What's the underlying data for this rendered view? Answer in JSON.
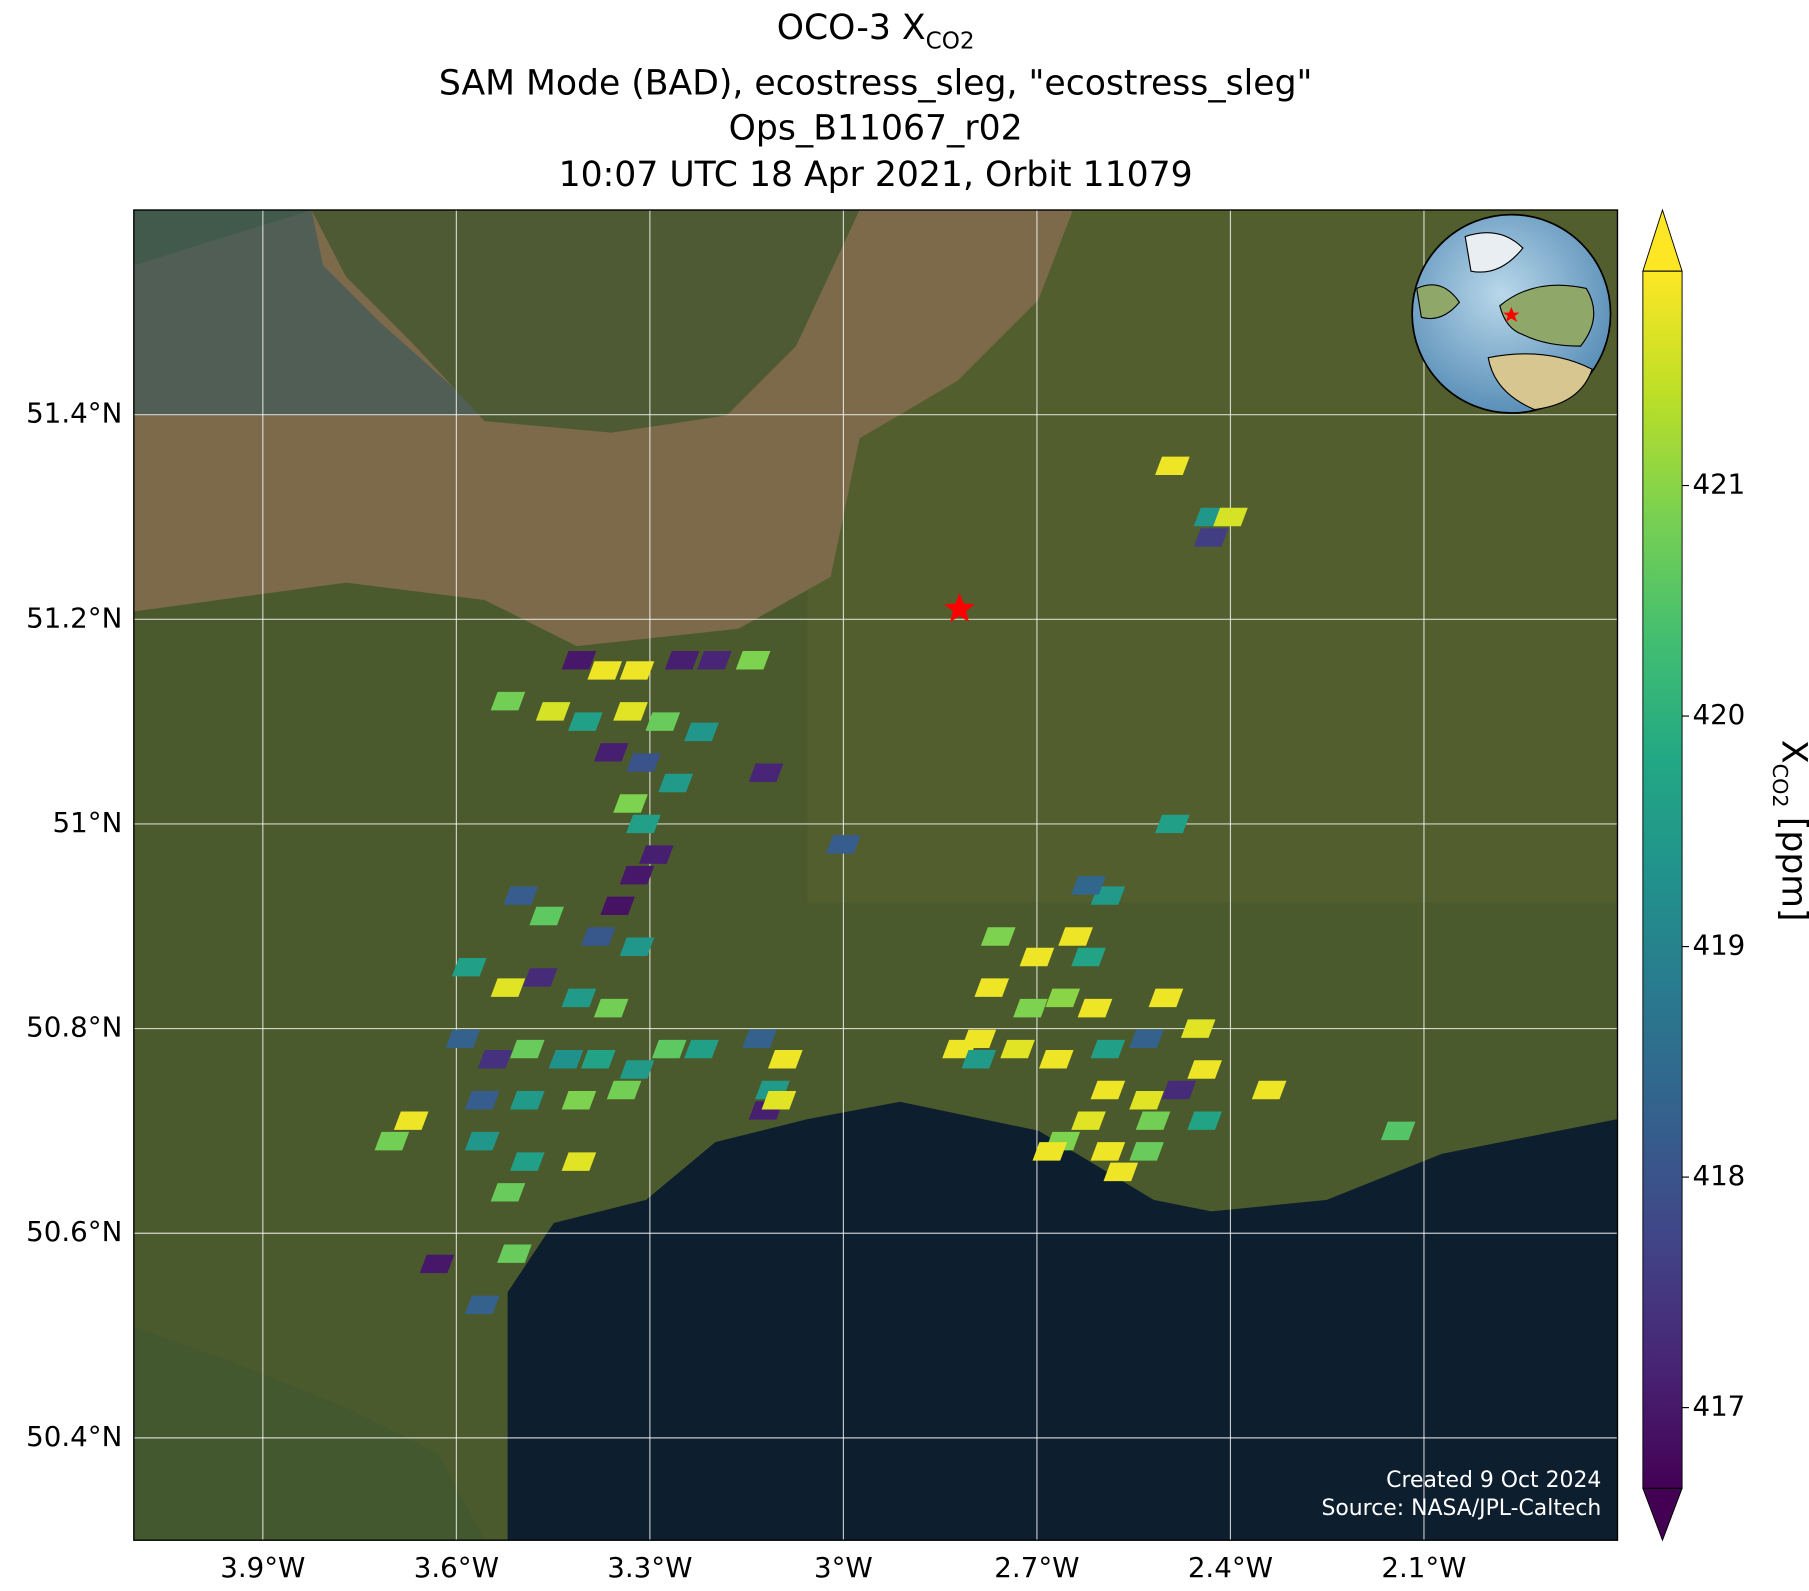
{
  "chart_data": {
    "type": "map",
    "title": {
      "main": "OCO-3 X",
      "subscript": "CO2"
    },
    "subtitle": [
      "SAM Mode (BAD), ecostress_sleg, \"ecostress_sleg\"",
      "Ops_B11067_r02",
      "10:07 UTC 18 Apr 2021, Orbit 11079"
    ],
    "xlim": [
      -4.1,
      -1.8
    ],
    "ylim": [
      50.3,
      51.6
    ],
    "xticks": [
      {
        "value": -3.9,
        "label": "3.9°W"
      },
      {
        "value": -3.6,
        "label": "3.6°W"
      },
      {
        "value": -3.3,
        "label": "3.3°W"
      },
      {
        "value": -3.0,
        "label": "3°W"
      },
      {
        "value": -2.7,
        "label": "2.7°W"
      },
      {
        "value": -2.4,
        "label": "2.4°W"
      },
      {
        "value": -2.1,
        "label": "2.1°W"
      }
    ],
    "yticks": [
      {
        "value": 51.4,
        "label": "51.4°N"
      },
      {
        "value": 51.2,
        "label": "51.2°N"
      },
      {
        "value": 51.0,
        "label": "51°N"
      },
      {
        "value": 50.8,
        "label": "50.8°N"
      },
      {
        "value": 50.6,
        "label": "50.6°N"
      },
      {
        "value": 50.4,
        "label": "50.4°N"
      }
    ],
    "grid": true,
    "colormap": "viridis",
    "clim": [
      416.65,
      421.93
    ],
    "cticks": [
      417,
      418,
      419,
      420,
      421
    ],
    "colorbar_label": {
      "main": "X",
      "subscript": "CO2",
      "unit": "[ppm]"
    },
    "target": {
      "lon": -2.82,
      "lat": 51.21,
      "color": "#ff0000"
    },
    "cells": {
      "lon": [
        -3.52,
        -3.41,
        -3.37,
        -3.32,
        -3.25,
        -3.2,
        -3.14,
        -3.45,
        -3.4,
        -3.33,
        -3.28,
        -3.22,
        -3.36,
        -3.31,
        -3.26,
        -3.33,
        -3.31,
        -3.32,
        -3.35,
        -3.29,
        -3.5,
        -3.46,
        -3.38,
        -3.32,
        -3.58,
        -3.52,
        -3.47,
        -3.41,
        -3.36,
        -3.59,
        -3.54,
        -3.49,
        -3.43,
        -3.38,
        -3.32,
        -3.27,
        -3.22,
        -3.56,
        -3.49,
        -3.41,
        -3.34,
        -3.67,
        -3.7,
        -3.56,
        -3.49,
        -3.41,
        -3.52,
        -3.63,
        -3.56,
        -3.51,
        -3.13,
        -3.09,
        -3.11,
        -3.12,
        -3.1,
        -3.12,
        -3.0,
        -2.49,
        -2.49,
        -2.43,
        -2.4,
        -2.43,
        -2.76,
        -2.7,
        -2.64,
        -2.77,
        -2.71,
        -2.66,
        -2.61,
        -2.79,
        -2.73,
        -2.67,
        -2.59,
        -2.53,
        -2.5,
        -2.45,
        -2.44,
        -2.59,
        -2.53,
        -2.48,
        -2.52,
        -2.44,
        -2.62,
        -2.59,
        -2.62,
        -2.82,
        -2.79,
        -2.66,
        -2.62,
        -2.68,
        -2.59,
        -2.57,
        -2.53,
        -2.34,
        -2.14
      ],
      "lat": [
        51.12,
        51.16,
        51.15,
        51.15,
        51.16,
        51.16,
        51.16,
        51.11,
        51.1,
        51.11,
        51.1,
        51.09,
        51.07,
        51.06,
        51.04,
        51.02,
        51.0,
        50.95,
        50.92,
        50.97,
        50.93,
        50.91,
        50.89,
        50.88,
        50.86,
        50.84,
        50.85,
        50.83,
        50.82,
        50.79,
        50.77,
        50.78,
        50.77,
        50.77,
        50.76,
        50.78,
        50.78,
        50.73,
        50.73,
        50.73,
        50.74,
        50.71,
        50.69,
        50.69,
        50.67,
        50.67,
        50.64,
        50.57,
        50.53,
        50.58,
        50.79,
        50.77,
        50.74,
        50.72,
        50.73,
        51.05,
        50.98,
        51.0,
        51.35,
        51.3,
        51.3,
        51.28,
        50.89,
        50.87,
        50.89,
        50.84,
        50.82,
        50.83,
        50.82,
        50.79,
        50.78,
        50.77,
        50.78,
        50.79,
        50.83,
        50.8,
        50.76,
        50.74,
        50.73,
        50.74,
        50.71,
        50.71,
        50.87,
        50.93,
        50.94,
        50.78,
        50.77,
        50.69,
        50.71,
        50.68,
        50.68,
        50.66,
        50.68,
        50.74,
        50.7
      ],
      "values": [
        420.8,
        417.0,
        421.8,
        421.8,
        417.1,
        417.2,
        420.9,
        421.6,
        419.6,
        421.7,
        420.7,
        419.4,
        417.1,
        418.0,
        419.5,
        420.9,
        419.6,
        417.0,
        416.9,
        417.1,
        418.2,
        420.6,
        418.1,
        419.4,
        419.6,
        421.7,
        417.3,
        419.5,
        420.8,
        418.3,
        417.4,
        420.7,
        419.3,
        419.7,
        419.5,
        420.6,
        419.6,
        418.2,
        419.5,
        420.9,
        420.8,
        421.8,
        420.8,
        419.4,
        419.6,
        421.7,
        420.7,
        417.0,
        418.3,
        420.7,
        418.3,
        421.8,
        419.5,
        417.1,
        421.7,
        417.2,
        418.2,
        419.6,
        421.8,
        419.4,
        421.6,
        417.6,
        420.9,
        421.8,
        421.8,
        421.8,
        420.9,
        421.0,
        421.8,
        421.8,
        421.7,
        421.8,
        419.6,
        418.3,
        421.8,
        421.7,
        421.8,
        421.8,
        421.7,
        417.3,
        420.8,
        419.7,
        419.7,
        419.5,
        418.4,
        421.8,
        419.5,
        420.9,
        421.7,
        421.8,
        421.8,
        421.8,
        420.7,
        421.8,
        420.5
      ]
    },
    "annotations": [
      "Created 9 Oct 2024",
      "Source: NASA/JPL-Caltech"
    ]
  }
}
